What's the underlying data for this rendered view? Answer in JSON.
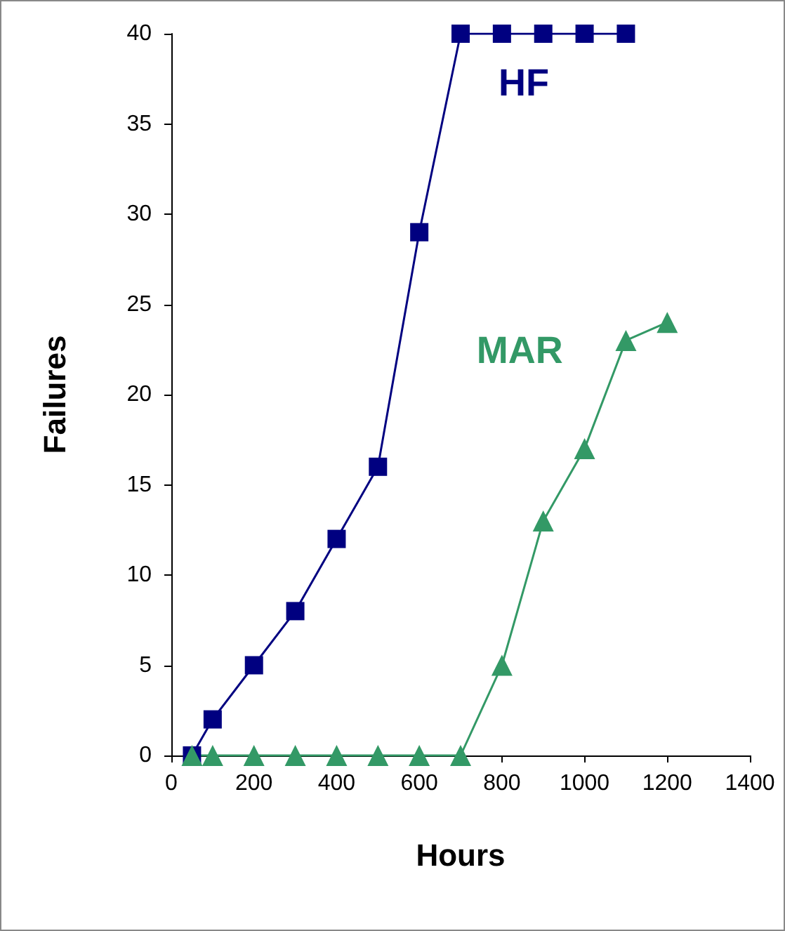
{
  "chart_data": {
    "type": "line",
    "xlabel": "Hours",
    "ylabel": "Failures",
    "legend": false,
    "grid": false,
    "xlim": [
      0,
      1400
    ],
    "xticks": [
      0,
      200,
      400,
      600,
      800,
      1000,
      1200,
      1400
    ],
    "ylim": [
      0,
      40
    ],
    "yticks": [
      0,
      5,
      10,
      15,
      20,
      25,
      30,
      35,
      40
    ],
    "series": [
      {
        "name": "HF",
        "color": "#000080",
        "marker": "square",
        "x": [
          50,
          100,
          200,
          300,
          400,
          500,
          600,
          700,
          800,
          900,
          1000,
          1100
        ],
        "values": [
          0,
          2,
          5,
          8,
          12,
          16,
          29,
          40,
          40,
          40,
          40,
          40
        ]
      },
      {
        "name": "MAR",
        "color": "#339966",
        "marker": "triangle",
        "x": [
          50,
          100,
          200,
          300,
          400,
          500,
          600,
          700,
          800,
          900,
          1000,
          1100,
          1200
        ],
        "values": [
          0,
          0,
          0,
          0,
          0,
          0,
          0,
          0,
          5,
          13,
          17,
          23,
          24
        ]
      }
    ]
  }
}
